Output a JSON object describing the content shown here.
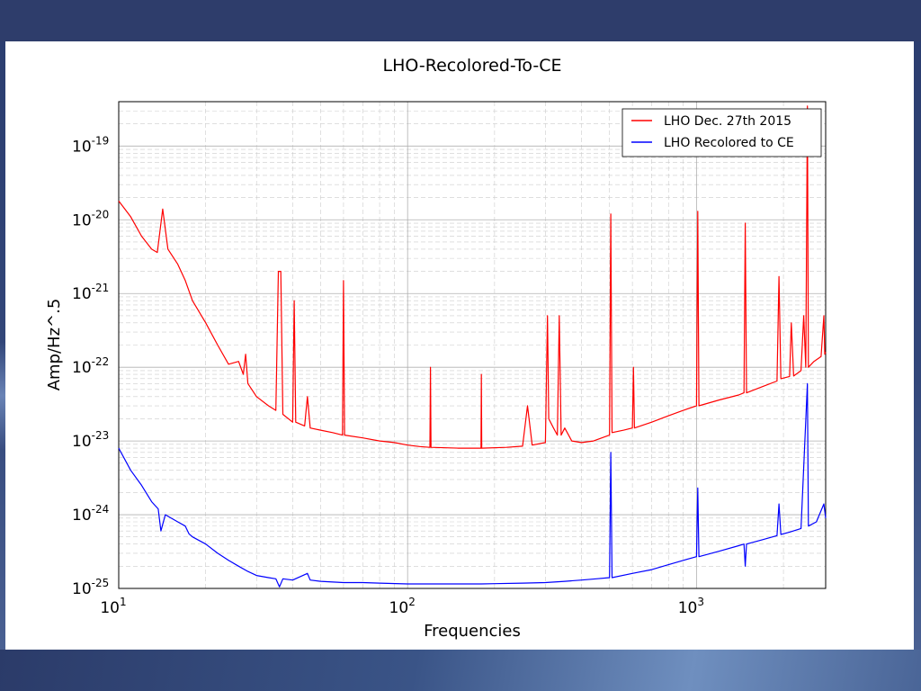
{
  "chart_data": {
    "type": "line",
    "title": "LHO-Recolored-To-CE",
    "xlabel": "Frequencies",
    "ylabel": "Amp/Hz^.5",
    "x_scale": "log",
    "y_scale": "log",
    "xlim": [
      10,
      2800
    ],
    "ylim": [
      1e-25,
      4e-19
    ],
    "x_ticks": [
      {
        "base": "10",
        "exp": "1",
        "value": 10
      },
      {
        "base": "10",
        "exp": "2",
        "value": 100
      },
      {
        "base": "10",
        "exp": "3",
        "value": 1000
      }
    ],
    "y_ticks": [
      {
        "base": "10",
        "exp": "-19",
        "value": 1e-19
      },
      {
        "base": "10",
        "exp": "-20",
        "value": 1e-20
      },
      {
        "base": "10",
        "exp": "-21",
        "value": 1e-21
      },
      {
        "base": "10",
        "exp": "-22",
        "value": 1e-22
      },
      {
        "base": "10",
        "exp": "-23",
        "value": 1e-23
      },
      {
        "base": "10",
        "exp": "-24",
        "value": 1e-24
      },
      {
        "base": "10",
        "exp": "-25",
        "value": 1e-25
      }
    ],
    "grid": true,
    "legend_position": "top-right",
    "series": [
      {
        "name": "LHO Dec. 27th 2015",
        "color": "#ff0000",
        "points": [
          [
            10,
            1.8e-20
          ],
          [
            11,
            1.1e-20
          ],
          [
            12,
            6e-21
          ],
          [
            13,
            4e-21
          ],
          [
            13.6,
            3.6e-21
          ],
          [
            14.2,
            1.4e-20
          ],
          [
            14.8,
            4e-21
          ],
          [
            16,
            2.5e-21
          ],
          [
            17,
            1.5e-21
          ],
          [
            18,
            8e-22
          ],
          [
            20,
            4e-22
          ],
          [
            22,
            2e-22
          ],
          [
            24,
            1.1e-22
          ],
          [
            26,
            1.2e-22
          ],
          [
            27,
            8e-23
          ],
          [
            27.5,
            1.5e-22
          ],
          [
            28,
            6e-23
          ],
          [
            30,
            4e-23
          ],
          [
            33,
            3e-23
          ],
          [
            35,
            2.6e-23
          ],
          [
            35.7,
            2e-21
          ],
          [
            36.4,
            2e-21
          ],
          [
            37,
            2.3e-23
          ],
          [
            40,
            1.8e-23
          ],
          [
            40.5,
            8e-22
          ],
          [
            41,
            1.8e-23
          ],
          [
            44,
            1.6e-23
          ],
          [
            45,
            4e-23
          ],
          [
            46,
            1.5e-23
          ],
          [
            50,
            1.4e-23
          ],
          [
            55,
            1.3e-23
          ],
          [
            59.5,
            1.2e-23
          ],
          [
            60,
            1.5e-21
          ],
          [
            60.5,
            1.2e-23
          ],
          [
            70,
            1.1e-23
          ],
          [
            80,
            1e-23
          ],
          [
            90,
            9.5e-24
          ],
          [
            100,
            8.8e-24
          ],
          [
            110,
            8.4e-24
          ],
          [
            119.5,
            8.2e-24
          ],
          [
            120,
            1e-22
          ],
          [
            120.5,
            8.2e-24
          ],
          [
            150,
            8e-24
          ],
          [
            179.5,
            8e-24
          ],
          [
            180,
            8e-23
          ],
          [
            180.5,
            8e-24
          ],
          [
            220,
            8.2e-24
          ],
          [
            250,
            8.5e-24
          ],
          [
            260,
            3e-23
          ],
          [
            270,
            8.8e-24
          ],
          [
            300,
            9.5e-24
          ],
          [
            305,
            5e-22
          ],
          [
            308,
            2e-23
          ],
          [
            320,
            1.5e-23
          ],
          [
            330,
            1.2e-23
          ],
          [
            335,
            5e-22
          ],
          [
            340,
            1.2e-23
          ],
          [
            350,
            1.5e-23
          ],
          [
            370,
            1e-23
          ],
          [
            400,
            9.5e-24
          ],
          [
            440,
            1e-23
          ],
          [
            470,
            1.1e-23
          ],
          [
            500,
            1.2e-23
          ],
          [
            505,
            1.2e-20
          ],
          [
            510,
            1.3e-23
          ],
          [
            560,
            1.4e-23
          ],
          [
            600,
            1.5e-23
          ],
          [
            605,
            1e-22
          ],
          [
            610,
            1.5e-23
          ],
          [
            700,
            1.8e-23
          ],
          [
            800,
            2.2e-23
          ],
          [
            900,
            2.6e-23
          ],
          [
            1000,
            3e-23
          ],
          [
            1010,
            1.3e-20
          ],
          [
            1020,
            3e-23
          ],
          [
            1200,
            3.6e-23
          ],
          [
            1400,
            4.2e-23
          ],
          [
            1460,
            4.5e-23
          ],
          [
            1475,
            9e-21
          ],
          [
            1490,
            4.5e-23
          ],
          [
            1700,
            5.5e-23
          ],
          [
            1900,
            6.5e-23
          ],
          [
            1930,
            1.7e-21
          ],
          [
            1960,
            7e-23
          ],
          [
            2100,
            7.5e-23
          ],
          [
            2130,
            4e-22
          ],
          [
            2170,
            7.6e-23
          ],
          [
            2300,
            9e-23
          ],
          [
            2350,
            5e-22
          ],
          [
            2390,
            1e-22
          ],
          [
            2420,
            3.5e-19
          ],
          [
            2440,
            1e-22
          ],
          [
            2550,
            1.2e-22
          ],
          [
            2700,
            1.4e-22
          ],
          [
            2760,
            5e-22
          ],
          [
            2780,
            1.5e-22
          ],
          [
            2800,
            1.6e-22
          ]
        ]
      },
      {
        "name": "LHO Recolored to CE",
        "color": "#0000ff",
        "points": [
          [
            10,
            8e-24
          ],
          [
            11,
            4e-24
          ],
          [
            12,
            2.5e-24
          ],
          [
            13,
            1.5e-24
          ],
          [
            13.7,
            1.2e-24
          ],
          [
            14,
            6e-25
          ],
          [
            14.5,
            1e-24
          ],
          [
            16,
            8e-25
          ],
          [
            17,
            7e-25
          ],
          [
            17.5,
            5.5e-25
          ],
          [
            18,
            5e-25
          ],
          [
            20,
            4e-25
          ],
          [
            22,
            3e-25
          ],
          [
            24,
            2.4e-25
          ],
          [
            26,
            2e-25
          ],
          [
            28,
            1.7e-25
          ],
          [
            30,
            1.5e-25
          ],
          [
            33,
            1.4e-25
          ],
          [
            35,
            1.35e-25
          ],
          [
            36,
            1.05e-25
          ],
          [
            37,
            1.35e-25
          ],
          [
            40,
            1.3e-25
          ],
          [
            45,
            1.6e-25
          ],
          [
            46,
            1.3e-25
          ],
          [
            50,
            1.25e-25
          ],
          [
            60,
            1.2e-25
          ],
          [
            70,
            1.2e-25
          ],
          [
            80,
            1.18e-25
          ],
          [
            100,
            1.15e-25
          ],
          [
            120,
            1.15e-25
          ],
          [
            150,
            1.15e-25
          ],
          [
            180,
            1.15e-25
          ],
          [
            200,
            1.16e-25
          ],
          [
            250,
            1.18e-25
          ],
          [
            300,
            1.2e-25
          ],
          [
            350,
            1.25e-25
          ],
          [
            400,
            1.3e-25
          ],
          [
            450,
            1.35e-25
          ],
          [
            500,
            1.4e-25
          ],
          [
            505,
            7e-24
          ],
          [
            510,
            1.4e-25
          ],
          [
            600,
            1.6e-25
          ],
          [
            700,
            1.8e-25
          ],
          [
            800,
            2.1e-25
          ],
          [
            900,
            2.4e-25
          ],
          [
            1000,
            2.7e-25
          ],
          [
            1010,
            2.3e-24
          ],
          [
            1020,
            2.7e-25
          ],
          [
            1200,
            3.2e-25
          ],
          [
            1400,
            3.8e-25
          ],
          [
            1460,
            4e-25
          ],
          [
            1475,
            2e-25
          ],
          [
            1490,
            4e-25
          ],
          [
            1700,
            4.6e-25
          ],
          [
            1900,
            5.2e-25
          ],
          [
            1930,
            1.4e-24
          ],
          [
            1960,
            5.4e-25
          ],
          [
            2100,
            5.8e-25
          ],
          [
            2300,
            6.5e-25
          ],
          [
            2420,
            6e-23
          ],
          [
            2440,
            7e-25
          ],
          [
            2600,
            8e-25
          ],
          [
            2760,
            1.4e-24
          ],
          [
            2800,
            9e-25
          ]
        ]
      }
    ]
  }
}
